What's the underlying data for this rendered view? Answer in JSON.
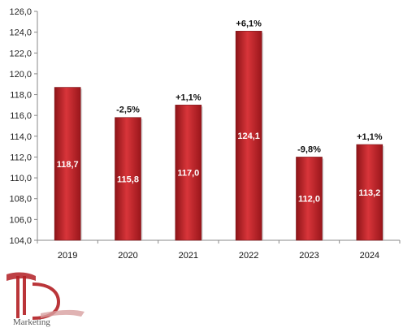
{
  "chart_data": {
    "type": "bar",
    "categories": [
      "2019",
      "2020",
      "2021",
      "2022",
      "2023",
      "2024"
    ],
    "values": [
      118.7,
      115.8,
      117.0,
      124.1,
      112.0,
      113.2
    ],
    "value_labels": [
      "118,7",
      "115,8",
      "117,0",
      "124,1",
      "112,0",
      "113,2"
    ],
    "change_labels": [
      "",
      "-2,5%",
      "+1,1%",
      "+6,1%",
      "-9,8%",
      "+1,1%"
    ],
    "ylim": [
      104,
      126
    ],
    "yticks": [
      "104,0",
      "106,0",
      "108,0",
      "110,0",
      "112,0",
      "114,0",
      "116,0",
      "118,0",
      "120,0",
      "122,0",
      "124,0",
      "126,0"
    ],
    "title": "",
    "xlabel": "",
    "ylabel": "",
    "grid": false,
    "bar_color": "#c1272d"
  },
  "logo": {
    "text": "Marketing",
    "color": "#b21f24"
  }
}
